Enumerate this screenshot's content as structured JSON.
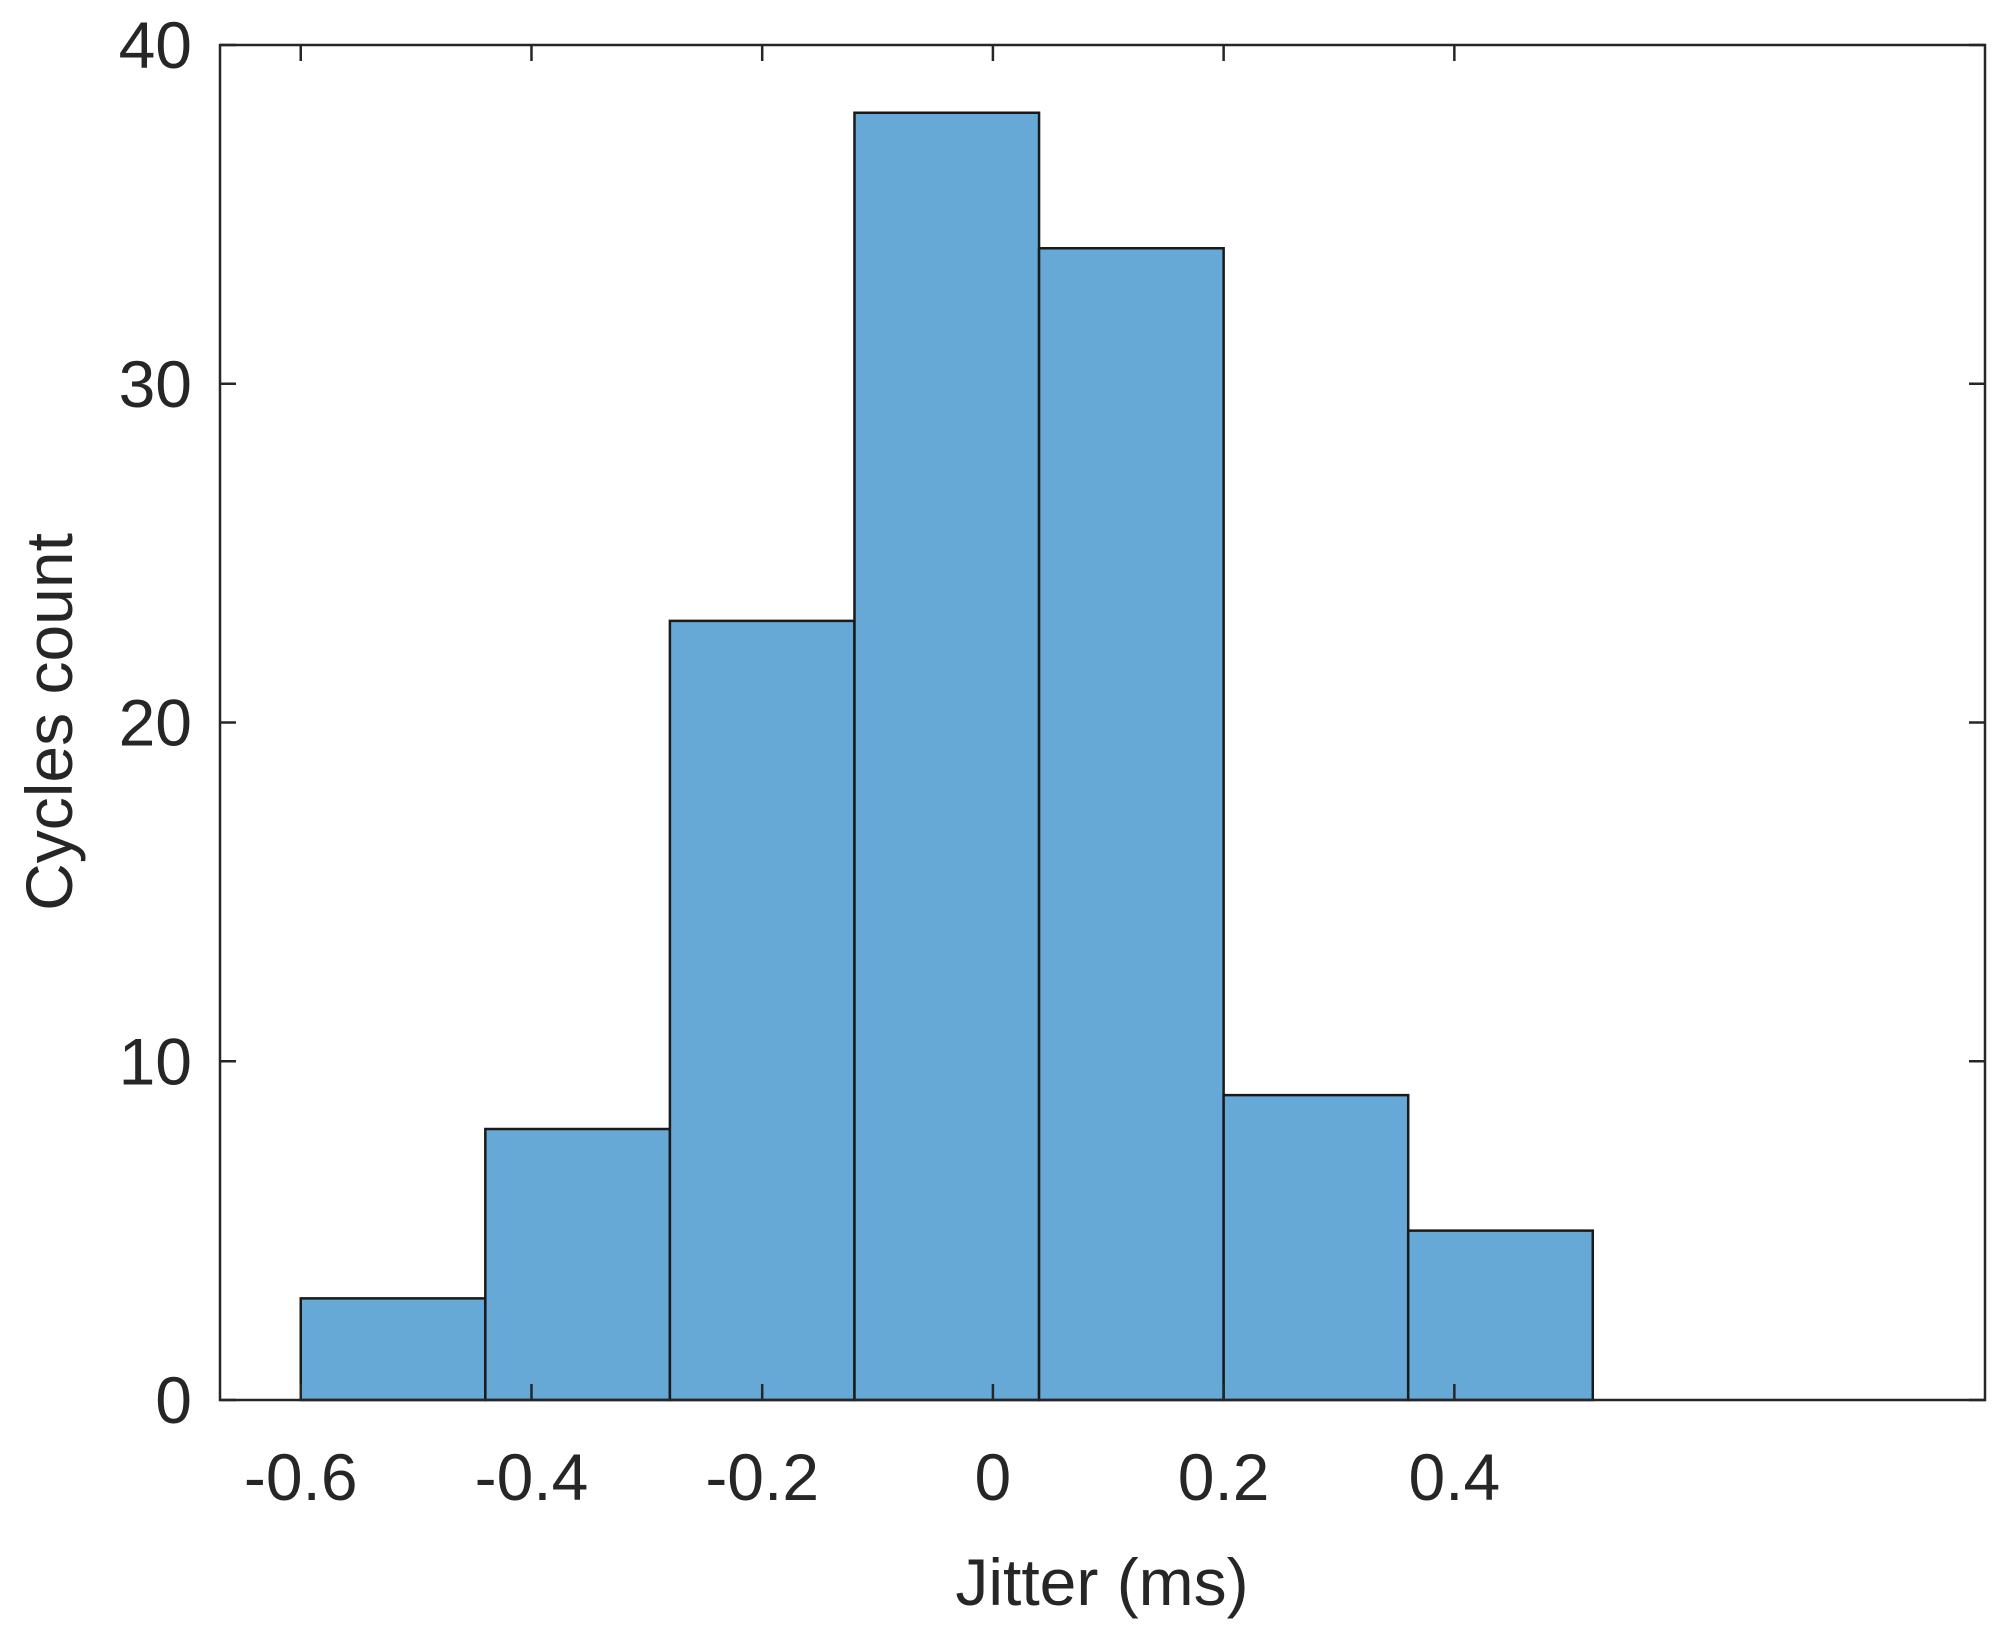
{
  "chart_data": {
    "type": "bar",
    "subtype": "histogram",
    "xlabel": "Jitter (ms)",
    "ylabel": "Cycles count",
    "xlim": [
      -0.67,
      0.86
    ],
    "ylim": [
      0,
      40
    ],
    "xticks": [
      -0.6,
      -0.4,
      -0.2,
      0,
      0.2,
      0.4
    ],
    "xtick_labels": [
      "-0.6",
      "-0.4",
      "-0.2",
      "0",
      "0.2",
      "0.4"
    ],
    "yticks": [
      0,
      10,
      20,
      30,
      40
    ],
    "ytick_labels": [
      "0",
      "10",
      "20",
      "30",
      "40"
    ],
    "bin_edges": [
      -0.6,
      -0.44,
      -0.28,
      -0.12,
      0.04,
      0.2,
      0.36,
      0.52
    ],
    "values": [
      3,
      8,
      23,
      38,
      34,
      9,
      5
    ],
    "grid": false,
    "box": true,
    "colors": {
      "bar_fill": "#67a9d6",
      "bar_edge": "#1a1a1a",
      "axis": "#262626"
    }
  }
}
